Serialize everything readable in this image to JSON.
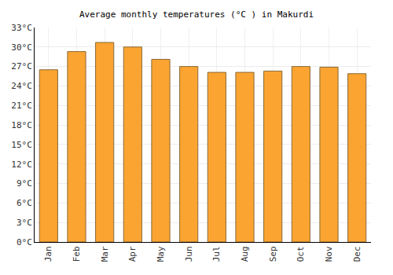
{
  "chart_data": {
    "type": "bar",
    "title": "Average monthly temperatures (°C ) in Makurdi",
    "categories": [
      "Jan",
      "Feb",
      "Mar",
      "Apr",
      "May",
      "Jun",
      "Jul",
      "Aug",
      "Sep",
      "Oct",
      "Nov",
      "Dec"
    ],
    "values": [
      26.5,
      29.3,
      30.7,
      30.0,
      28.1,
      27.0,
      26.1,
      26.1,
      26.3,
      27.0,
      26.9,
      25.9
    ],
    "color": "#fba431",
    "ylim": [
      0,
      33
    ],
    "yticks": [
      {
        "value": 0,
        "label": "0°C"
      },
      {
        "value": 3,
        "label": "3°C"
      },
      {
        "value": 6,
        "label": "6°C"
      },
      {
        "value": 9,
        "label": "9°C"
      },
      {
        "value": 12,
        "label": "12°C"
      },
      {
        "value": 15,
        "label": "15°C"
      },
      {
        "value": 18,
        "label": "18°C"
      },
      {
        "value": 21,
        "label": "21°C"
      },
      {
        "value": 24,
        "label": "24°C"
      },
      {
        "value": 27,
        "label": "27°C"
      },
      {
        "value": 30,
        "label": "30°C"
      },
      {
        "value": 33,
        "label": "33°C"
      }
    ],
    "grid": true
  }
}
